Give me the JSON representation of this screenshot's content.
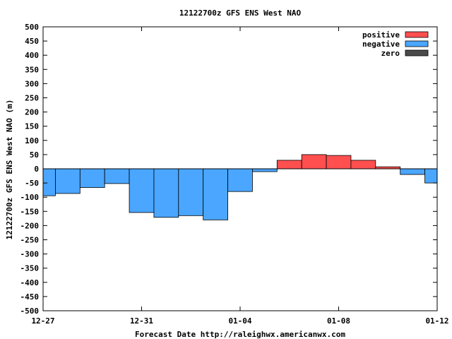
{
  "chart_data": {
    "type": "bar",
    "title": "12122700z GFS ENS West NAO",
    "xlabel": "Forecast Date http://raleighwx.americanwx.com",
    "ylabel": "12122700z GFS ENS West NAO (m)",
    "ylim": [
      -500,
      500
    ],
    "yticks": [
      -500,
      -450,
      -400,
      -350,
      -300,
      -250,
      -200,
      -150,
      -100,
      -50,
      0,
      50,
      100,
      150,
      200,
      250,
      300,
      350,
      400,
      450,
      500
    ],
    "xlim_days": [
      0,
      16
    ],
    "xticks": [
      {
        "day": 0,
        "label": "12-27"
      },
      {
        "day": 4,
        "label": "12-31"
      },
      {
        "day": 8,
        "label": "01-04"
      },
      {
        "day": 12,
        "label": "01-08"
      },
      {
        "day": 16,
        "label": "01-12"
      }
    ],
    "grid": false,
    "legend_position": "top-right",
    "legend": [
      {
        "label": "positive",
        "color": "#ff4f4f"
      },
      {
        "label": "negative",
        "color": "#4aa6ff"
      },
      {
        "label": "zero",
        "color": "#4a4a4a"
      }
    ],
    "colors": {
      "positive": "#ff4f4f",
      "negative": "#4aa6ff",
      "zero": "#4a4a4a"
    },
    "bars": [
      {
        "start": "12-26 12z",
        "end": "12-27 12z",
        "value": -95
      },
      {
        "start": "12-27 12z",
        "end": "12-28 12z",
        "value": -87
      },
      {
        "start": "12-28 12z",
        "end": "12-29 12z",
        "value": -66
      },
      {
        "start": "12-29 12z",
        "end": "12-30 12z",
        "value": -52
      },
      {
        "start": "12-30 12z",
        "end": "12-31 12z",
        "value": -154
      },
      {
        "start": "12-31 12z",
        "end": "01-01 12z",
        "value": -171
      },
      {
        "start": "01-01 12z",
        "end": "01-02 12z",
        "value": -165
      },
      {
        "start": "01-02 12z",
        "end": "01-03 12z",
        "value": -180
      },
      {
        "start": "01-03 12z",
        "end": "01-04 12z",
        "value": -80
      },
      {
        "start": "01-04 12z",
        "end": "01-05 12z",
        "value": -10
      },
      {
        "start": "01-05 12z",
        "end": "01-06 12z",
        "value": 30
      },
      {
        "start": "01-06 12z",
        "end": "01-07 12z",
        "value": 50
      },
      {
        "start": "01-07 12z",
        "end": "01-08 12z",
        "value": 47
      },
      {
        "start": "01-08 12z",
        "end": "01-09 12z",
        "value": 30
      },
      {
        "start": "01-09 12z",
        "end": "01-10 12z",
        "value": 7
      },
      {
        "start": "01-10 12z",
        "end": "01-11 12z",
        "value": -20
      },
      {
        "start": "01-11 12z",
        "end": "01-12 12z",
        "value": -50
      }
    ]
  }
}
